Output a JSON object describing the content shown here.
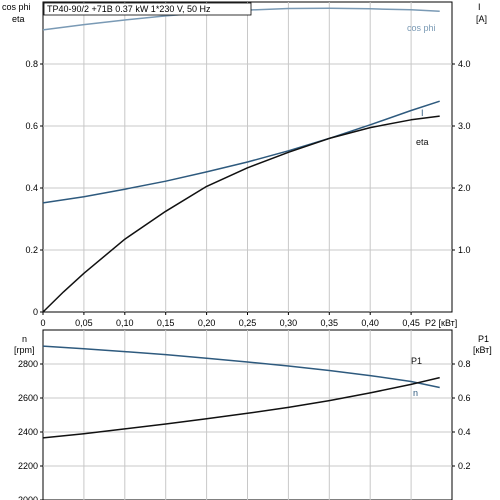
{
  "chart_data": [
    {
      "type": "line",
      "title": "TP40-90/2 +71B  0.37 kW  1*230 V, 50 Hz",
      "x_label": "P2 [кВт]",
      "x_ticks": [
        "0",
        "0,05",
        "0,10",
        "0,15",
        "0,20",
        "0,25",
        "0,30",
        "0,35",
        "0,40",
        "0,45"
      ],
      "xlim": [
        0,
        0.5
      ],
      "left_axis": {
        "label_lines": [
          "cos phi",
          "eta"
        ],
        "ylim": [
          0,
          1.0
        ],
        "ticks": [
          "0",
          "0.2",
          "0.4",
          "0.6",
          "0.8"
        ]
      },
      "right_axis": {
        "label_lines": [
          "I",
          "[A]"
        ],
        "ylim": [
          0,
          5.0
        ],
        "ticks": [
          "1.0",
          "2.0",
          "3.0",
          "4.0"
        ]
      },
      "grid": true,
      "series": [
        {
          "name": "cos phi",
          "axis": "left",
          "color": "#7a9ab5",
          "x": [
            0,
            0.05,
            0.1,
            0.15,
            0.2,
            0.25,
            0.3,
            0.35,
            0.4,
            0.45,
            0.485
          ],
          "y": [
            0.91,
            0.927,
            0.942,
            0.955,
            0.966,
            0.974,
            0.979,
            0.98,
            0.978,
            0.975,
            0.97
          ]
        },
        {
          "name": "I",
          "axis": "right",
          "color": "#2e5a7e",
          "x": [
            0,
            0.05,
            0.1,
            0.15,
            0.2,
            0.25,
            0.3,
            0.35,
            0.4,
            0.45,
            0.485
          ],
          "y": [
            1.76,
            1.86,
            1.98,
            2.11,
            2.26,
            2.42,
            2.6,
            2.8,
            3.02,
            3.25,
            3.4
          ]
        },
        {
          "name": "eta",
          "axis": "left",
          "color": "#111111",
          "x": [
            0,
            0.025,
            0.05,
            0.1,
            0.15,
            0.2,
            0.25,
            0.3,
            0.35,
            0.4,
            0.45,
            0.485
          ],
          "y": [
            0,
            0.065,
            0.125,
            0.235,
            0.325,
            0.405,
            0.465,
            0.515,
            0.56,
            0.595,
            0.62,
            0.632
          ]
        }
      ]
    },
    {
      "type": "line",
      "xlim": [
        0,
        0.5
      ],
      "left_axis": {
        "label_lines": [
          "n",
          "[rpm]"
        ],
        "ylim": [
          2000,
          3000
        ],
        "ticks": [
          "2000",
          "2200",
          "2400",
          "2600",
          "2800"
        ]
      },
      "right_axis": {
        "label_lines": [
          "P1",
          "[кВт]"
        ],
        "ylim": [
          0.0,
          1.0
        ],
        "ticks": [
          "0.2",
          "0.4",
          "0.6",
          "0.8"
        ]
      },
      "grid": true,
      "series": [
        {
          "name": "n",
          "axis": "left",
          "color": "#2e5a7e",
          "x": [
            0,
            0.05,
            0.1,
            0.15,
            0.2,
            0.25,
            0.3,
            0.35,
            0.4,
            0.45,
            0.485
          ],
          "y": [
            2905,
            2890,
            2873,
            2855,
            2834,
            2812,
            2788,
            2762,
            2732,
            2697,
            2662
          ]
        },
        {
          "name": "P1",
          "axis": "right",
          "color": "#111111",
          "x": [
            0,
            0.05,
            0.1,
            0.15,
            0.2,
            0.25,
            0.3,
            0.35,
            0.4,
            0.45,
            0.485
          ],
          "y": [
            0.365,
            0.39,
            0.418,
            0.447,
            0.478,
            0.51,
            0.545,
            0.585,
            0.63,
            0.68,
            0.72
          ]
        }
      ]
    }
  ]
}
